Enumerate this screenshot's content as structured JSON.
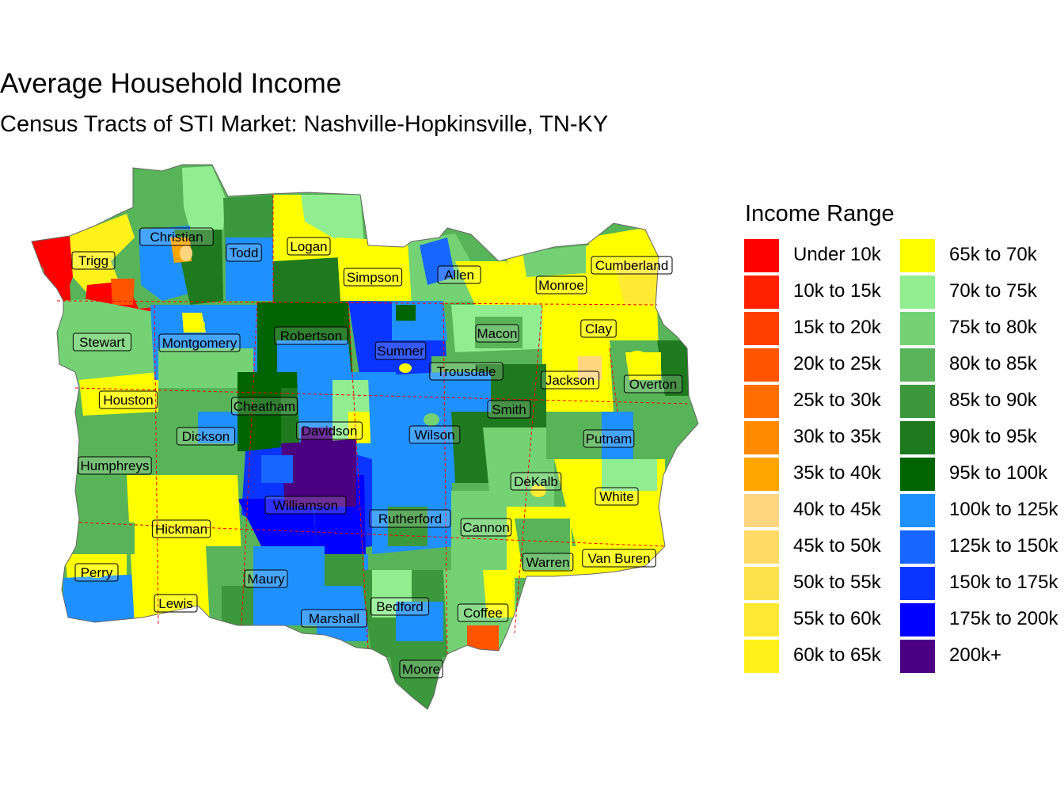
{
  "title": "Average Household Income",
  "subtitle": "Census Tracts of STI Market: Nashville-Hopkinsville, TN-KY",
  "legend": {
    "title": "Income Range",
    "items": [
      {
        "label": "Under 10k",
        "color": "#FF0000"
      },
      {
        "label": "10k to 15k",
        "color": "#FF2000"
      },
      {
        "label": "15k to 20k",
        "color": "#FF3F00"
      },
      {
        "label": "20k to 25k",
        "color": "#FF5500"
      },
      {
        "label": "25k to 30k",
        "color": "#FF6E00"
      },
      {
        "label": "30k to 35k",
        "color": "#FF8A00"
      },
      {
        "label": "35k to 40k",
        "color": "#FFA500"
      },
      {
        "label": "40k to 45k",
        "color": "#FFD580"
      },
      {
        "label": "45k to 50k",
        "color": "#FFDA66"
      },
      {
        "label": "50k to 55k",
        "color": "#FFE14A"
      },
      {
        "label": "55k to 60k",
        "color": "#FFE933"
      },
      {
        "label": "60k to 65k",
        "color": "#FFF21A"
      },
      {
        "label": "65k to 70k",
        "color": "#FFFF00"
      },
      {
        "label": "70k to 75k",
        "color": "#90EE90"
      },
      {
        "label": "75k to 80k",
        "color": "#74D274"
      },
      {
        "label": "80k to 85k",
        "color": "#58B458"
      },
      {
        "label": "85k to 90k",
        "color": "#3C983C"
      },
      {
        "label": "90k to 95k",
        "color": "#1F7A1F"
      },
      {
        "label": "95k to 100k",
        "color": "#006400"
      },
      {
        "label": "100k to 125k",
        "color": "#1E90FF"
      },
      {
        "label": "125k to 150k",
        "color": "#1666FF"
      },
      {
        "label": "150k to 175k",
        "color": "#0A35FF"
      },
      {
        "label": "175k to 200k",
        "color": "#0000FF"
      },
      {
        "label": "200k+",
        "color": "#4B0082"
      }
    ]
  },
  "map": {
    "boundary_color": "#FF0000",
    "counties": [
      {
        "name": "Trigg",
        "bracket": "60k to 65k"
      },
      {
        "name": "Christian",
        "bracket": "90k to 95k"
      },
      {
        "name": "Todd",
        "bracket": "85k to 90k"
      },
      {
        "name": "Logan",
        "bracket": "65k to 70k"
      },
      {
        "name": "Simpson",
        "bracket": "65k to 70k"
      },
      {
        "name": "Allen",
        "bracket": "75k to 80k"
      },
      {
        "name": "Monroe",
        "bracket": "65k to 70k"
      },
      {
        "name": "Cumberland",
        "bracket": "65k to 70k"
      },
      {
        "name": "Stewart",
        "bracket": "75k to 80k"
      },
      {
        "name": "Montgomery",
        "bracket": "100k to 125k"
      },
      {
        "name": "Robertson",
        "bracket": "90k to 95k"
      },
      {
        "name": "Sumner",
        "bracket": "125k to 150k"
      },
      {
        "name": "Macon",
        "bracket": "70k to 75k"
      },
      {
        "name": "Clay",
        "bracket": "65k to 70k"
      },
      {
        "name": "Trousdale",
        "bracket": "80k to 85k"
      },
      {
        "name": "Jackson",
        "bracket": "65k to 70k"
      },
      {
        "name": "Overton",
        "bracket": "80k to 85k"
      },
      {
        "name": "Houston",
        "bracket": "65k to 70k"
      },
      {
        "name": "Cheatham",
        "bracket": "95k to 100k"
      },
      {
        "name": "Smith",
        "bracket": "90k to 95k"
      },
      {
        "name": "Davidson",
        "bracket": "100k to 125k"
      },
      {
        "name": "Wilson",
        "bracket": "100k to 125k"
      },
      {
        "name": "Dickson",
        "bracket": "80k to 85k"
      },
      {
        "name": "Putnam",
        "bracket": "85k to 90k"
      },
      {
        "name": "Humphreys",
        "bracket": "80k to 85k"
      },
      {
        "name": "DeKalb",
        "bracket": "75k to 80k"
      },
      {
        "name": "White",
        "bracket": "65k to 70k"
      },
      {
        "name": "Williamson",
        "bracket": "175k to 200k"
      },
      {
        "name": "Rutherford",
        "bracket": "100k to 125k"
      },
      {
        "name": "Cannon",
        "bracket": "75k to 80k"
      },
      {
        "name": "Hickman",
        "bracket": "65k to 70k"
      },
      {
        "name": "Perry",
        "bracket": "65k to 70k"
      },
      {
        "name": "Warren",
        "bracket": "80k to 85k"
      },
      {
        "name": "Van Buren",
        "bracket": "65k to 70k"
      },
      {
        "name": "Maury",
        "bracket": "100k to 125k"
      },
      {
        "name": "Lewis",
        "bracket": "65k to 70k"
      },
      {
        "name": "Marshall",
        "bracket": "85k to 90k"
      },
      {
        "name": "Bedford",
        "bracket": "80k to 85k"
      },
      {
        "name": "Coffee",
        "bracket": "75k to 80k"
      },
      {
        "name": "Moore",
        "bracket": "85k to 90k"
      }
    ]
  }
}
